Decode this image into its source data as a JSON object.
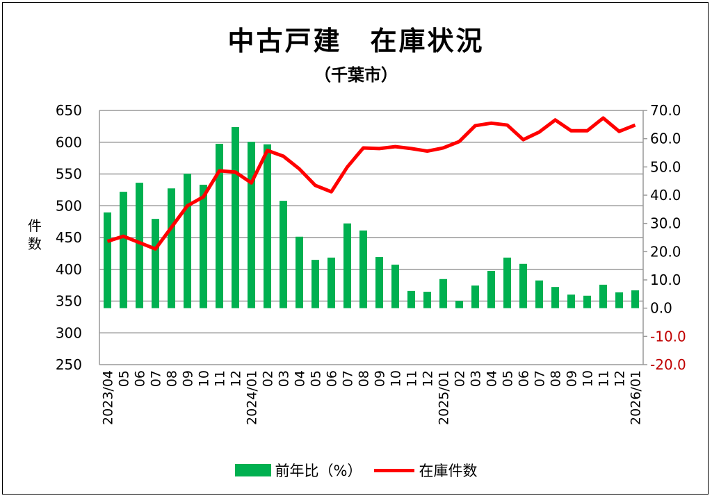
{
  "chart_data": {
    "type": "bar+line",
    "title": "中古戸建　在庫状況",
    "subtitle": "（千葉市）",
    "ylabel_left": "件数",
    "categories": [
      "2023/04",
      "05",
      "06",
      "07",
      "08",
      "09",
      "10",
      "11",
      "12",
      "2024/01",
      "02",
      "03",
      "04",
      "05",
      "06",
      "07",
      "08",
      "09",
      "10",
      "11",
      "12",
      "2025/01",
      "02",
      "03",
      "04",
      "05",
      "06",
      "07",
      "08",
      "09",
      "10",
      "11",
      "12",
      "2026/01"
    ],
    "left_axis": {
      "min": 250,
      "max": 650,
      "step": 50,
      "ticks": [
        "250",
        "300",
        "350",
        "400",
        "450",
        "500",
        "550",
        "600",
        "650"
      ]
    },
    "right_axis": {
      "min": -20,
      "max": 70,
      "step": 10,
      "ticks": [
        "-20.0",
        "-10.0",
        "0.0",
        "10.0",
        "20.0",
        "30.0",
        "40.0",
        "50.0",
        "60.0",
        "70.0"
      ],
      "negative_color": "#c00000"
    },
    "grid": true,
    "legend_position": "bottom",
    "series": [
      {
        "name": "前年比（%）",
        "type": "bar",
        "axis": "right",
        "color": "#00b050",
        "values": [
          33.9,
          41.2,
          44.4,
          31.6,
          42.4,
          47.6,
          43.7,
          58.2,
          64.1,
          58.9,
          58.0,
          38.0,
          25.3,
          17.1,
          17.9,
          30.0,
          27.5,
          18.1,
          15.4,
          6.1,
          5.8,
          10.3,
          2.6,
          8.0,
          13.2,
          17.9,
          15.7,
          9.8,
          7.5,
          4.8,
          4.4,
          8.3,
          5.6,
          6.3
        ]
      },
      {
        "name": "在庫件数",
        "type": "line",
        "axis": "left",
        "color": "#ff0000",
        "values": [
          444,
          452,
          442,
          432,
          466,
          500,
          514,
          555,
          553,
          536,
          587,
          578,
          558,
          532,
          522,
          561,
          591,
          590,
          593,
          590,
          586,
          591,
          601,
          626,
          630,
          627,
          604,
          616,
          635,
          618,
          618,
          638,
          617,
          627
        ]
      }
    ]
  }
}
